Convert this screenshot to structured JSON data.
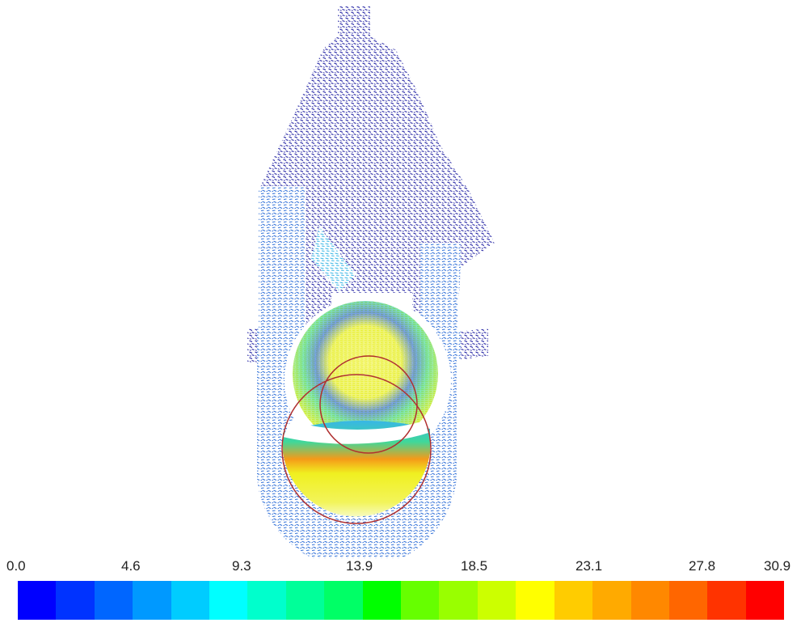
{
  "figure": {
    "background": "#ffffff",
    "outline_circle_color": "#b03030",
    "vector_palette": {
      "low": "#1a1aa0",
      "low_mid": "#2e6fd8",
      "mid": "#38b6e6",
      "mid_high": "#3fd89a",
      "high": "#f0f020",
      "peak": "#f59a18"
    }
  },
  "colorbar": {
    "min": 0.0,
    "max": 30.9,
    "tick_labels": [
      "0.0",
      "4.6",
      "9.3",
      "13.9",
      "18.5",
      "23.1",
      "27.8",
      "30.9"
    ],
    "colors": [
      "#0000ff",
      "#0033ff",
      "#0066ff",
      "#0099ff",
      "#00ccff",
      "#00ffff",
      "#00ffcc",
      "#00ff99",
      "#00ff66",
      "#00ff00",
      "#66ff00",
      "#99ff00",
      "#ccff00",
      "#ffff00",
      "#ffcc00",
      "#ffaa00",
      "#ff8800",
      "#ff6600",
      "#ff3300",
      "#ff0000"
    ]
  }
}
